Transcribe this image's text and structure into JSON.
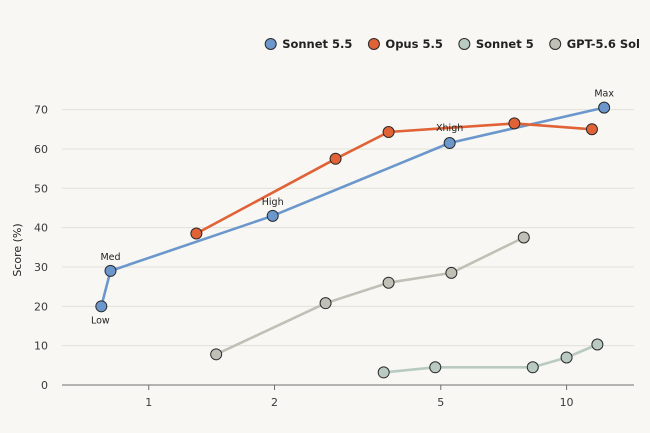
{
  "chart_data": {
    "type": "line",
    "xscale": "log",
    "xlabel": "",
    "ylabel": "Score (%)",
    "xlim": [
      0.62,
      14.5
    ],
    "ylim": [
      0,
      76
    ],
    "x_ticks": [
      1,
      2,
      5,
      10
    ],
    "y_ticks": [
      0,
      10,
      20,
      30,
      40,
      50,
      60,
      70
    ],
    "grid": "horizontal",
    "legend_position": "top-right",
    "series": [
      {
        "name": "Sonnet 5.5",
        "color": "#6b97cc",
        "points": [
          {
            "x": 0.77,
            "y": 20,
            "label": "Low"
          },
          {
            "x": 0.81,
            "y": 29,
            "label": "Med"
          },
          {
            "x": 1.98,
            "y": 43,
            "label": "High"
          },
          {
            "x": 5.25,
            "y": 61.5,
            "label": "Xhigh"
          },
          {
            "x": 12.3,
            "y": 70.5,
            "label": "Max"
          }
        ]
      },
      {
        "name": "Opus 5.5",
        "color": "#e06236",
        "points": [
          {
            "x": 1.3,
            "y": 38.5
          },
          {
            "x": 2.8,
            "y": 57.5
          },
          {
            "x": 3.75,
            "y": 64.3
          },
          {
            "x": 7.5,
            "y": 66.5
          },
          {
            "x": 11.5,
            "y": 65
          }
        ]
      },
      {
        "name": "Sonnet 5",
        "color": "#b9cbc1",
        "points": [
          {
            "x": 3.65,
            "y": 3.2
          },
          {
            "x": 4.85,
            "y": 4.5
          },
          {
            "x": 8.3,
            "y": 4.5
          },
          {
            "x": 10.0,
            "y": 7
          },
          {
            "x": 11.85,
            "y": 10.3
          }
        ]
      },
      {
        "name": "GPT-5.6 Sol",
        "color": "#c1c0b6",
        "points": [
          {
            "x": 1.45,
            "y": 7.8
          },
          {
            "x": 2.65,
            "y": 20.8
          },
          {
            "x": 3.75,
            "y": 26
          },
          {
            "x": 5.3,
            "y": 28.5
          },
          {
            "x": 7.9,
            "y": 37.5
          }
        ]
      }
    ]
  }
}
